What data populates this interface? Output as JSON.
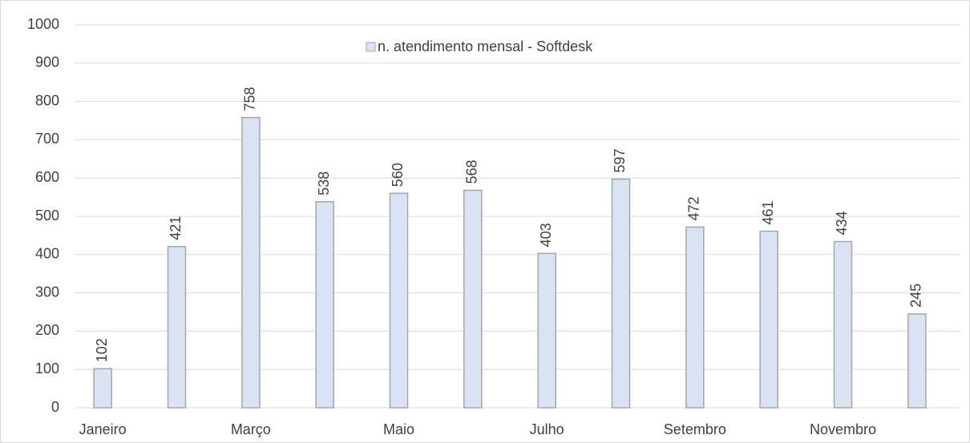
{
  "chart_data": {
    "type": "bar",
    "categories": [
      "Janeiro",
      null,
      "Março",
      null,
      "Maio",
      null,
      "Julho",
      null,
      "Setembro",
      null,
      "Novembro",
      null
    ],
    "series": [
      {
        "name": "n. atendimento mensal - Softdesk",
        "color": "#dae3f3",
        "values": [
          102,
          421,
          758,
          538,
          560,
          568,
          403,
          597,
          472,
          461,
          434,
          245
        ]
      }
    ],
    "ylim": [
      0,
      1000
    ],
    "yticks": [
      0,
      100,
      200,
      300,
      400,
      500,
      600,
      700,
      800,
      900,
      1000
    ],
    "grid": true,
    "legend": "top"
  }
}
